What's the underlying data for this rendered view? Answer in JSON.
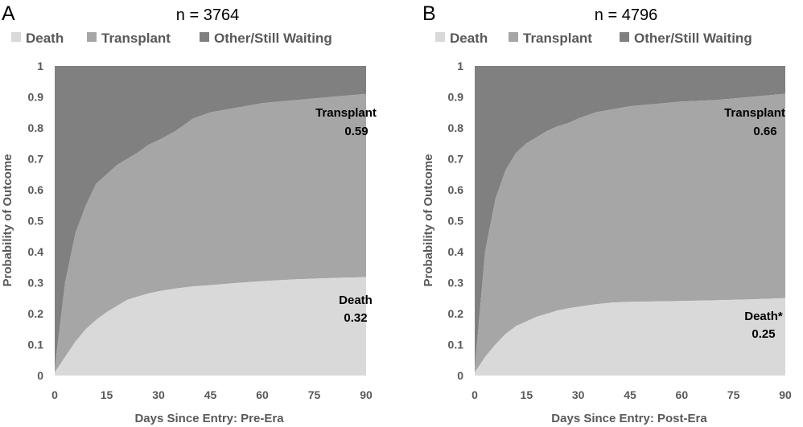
{
  "chart_data": [
    {
      "panel_label": "A",
      "title": "n = 3764",
      "type": "area",
      "stacked": true,
      "xlabel": "Days Since Entry: Pre-Era",
      "ylabel": "Probability of Outcome",
      "xlim": [
        0,
        90
      ],
      "ylim": [
        0,
        1
      ],
      "xticks": [
        0,
        15,
        30,
        45,
        60,
        75,
        90
      ],
      "yticks": [
        0,
        0.1,
        0.2,
        0.3,
        0.4,
        0.5,
        0.6,
        0.7,
        0.8,
        0.9,
        1
      ],
      "ytick_labels": [
        "0",
        "0.1",
        "0.2",
        "0.3",
        "0.4",
        "0.5",
        "0.6",
        "0.7",
        "0.8",
        "0.9",
        "1"
      ],
      "grid": false,
      "legend_position": "top",
      "x": [
        0,
        3,
        6,
        9,
        12,
        15,
        18,
        21,
        24,
        27,
        30,
        35,
        40,
        45,
        50,
        55,
        60,
        70,
        80,
        90
      ],
      "series": [
        {
          "name": "Death",
          "color": "#d9d9d9",
          "values": [
            0.01,
            0.06,
            0.11,
            0.15,
            0.18,
            0.205,
            0.225,
            0.245,
            0.255,
            0.265,
            0.272,
            0.281,
            0.288,
            0.292,
            0.297,
            0.301,
            0.305,
            0.311,
            0.315,
            0.318
          ]
        },
        {
          "name": "Transplant",
          "color": "#a6a6a6",
          "values": [
            0.01,
            0.24,
            0.35,
            0.4,
            0.44,
            0.445,
            0.455,
            0.455,
            0.465,
            0.48,
            0.488,
            0.509,
            0.542,
            0.558,
            0.563,
            0.569,
            0.575,
            0.579,
            0.585,
            0.592
          ]
        },
        {
          "name": "Other/Still Waiting",
          "color": "#808080",
          "values": [
            0.98,
            0.7,
            0.54,
            0.45,
            0.38,
            0.35,
            0.32,
            0.3,
            0.28,
            0.255,
            0.24,
            0.21,
            0.17,
            0.15,
            0.14,
            0.13,
            0.12,
            0.11,
            0.1,
            0.09
          ]
        }
      ],
      "annotations": [
        {
          "text": "Transplant",
          "value": "0.59"
        },
        {
          "text": "Death",
          "value": "0.32"
        }
      ]
    },
    {
      "panel_label": "B",
      "title": "n = 4796",
      "type": "area",
      "stacked": true,
      "xlabel": "Days Since Entry: Post-Era",
      "ylabel": "Probability of Outcome",
      "xlim": [
        0,
        90
      ],
      "ylim": [
        0,
        1
      ],
      "xticks": [
        0,
        15,
        30,
        45,
        60,
        75,
        90
      ],
      "yticks": [
        0,
        0.1,
        0.2,
        0.3,
        0.4,
        0.5,
        0.6,
        0.7,
        0.8,
        0.9,
        1
      ],
      "ytick_labels": [
        "0",
        "0.1",
        "0.2",
        "0.3",
        "0.4",
        "0.5",
        "0.6",
        "0.7",
        "0.8",
        "0.9",
        "1"
      ],
      "grid": false,
      "legend_position": "top",
      "x": [
        0,
        3,
        6,
        9,
        12,
        15,
        18,
        21,
        24,
        27,
        30,
        35,
        40,
        45,
        50,
        55,
        60,
        70,
        80,
        90
      ],
      "series": [
        {
          "name": "Death",
          "color": "#d9d9d9",
          "values": [
            0.01,
            0.06,
            0.1,
            0.135,
            0.16,
            0.175,
            0.19,
            0.2,
            0.21,
            0.217,
            0.222,
            0.23,
            0.236,
            0.238,
            0.239,
            0.24,
            0.241,
            0.243,
            0.246,
            0.25
          ]
        },
        {
          "name": "Transplant",
          "color": "#a6a6a6",
          "values": [
            0.01,
            0.34,
            0.47,
            0.53,
            0.56,
            0.575,
            0.58,
            0.59,
            0.595,
            0.598,
            0.608,
            0.62,
            0.624,
            0.632,
            0.636,
            0.64,
            0.644,
            0.647,
            0.654,
            0.66
          ]
        },
        {
          "name": "Other/Still Waiting",
          "color": "#808080",
          "values": [
            0.98,
            0.6,
            0.43,
            0.335,
            0.28,
            0.25,
            0.23,
            0.21,
            0.195,
            0.185,
            0.17,
            0.15,
            0.14,
            0.13,
            0.125,
            0.12,
            0.115,
            0.11,
            0.1,
            0.09
          ]
        }
      ],
      "annotations": [
        {
          "text": "Transplant",
          "value": "0.66"
        },
        {
          "text": "Death*",
          "value": "0.25"
        }
      ]
    }
  ]
}
